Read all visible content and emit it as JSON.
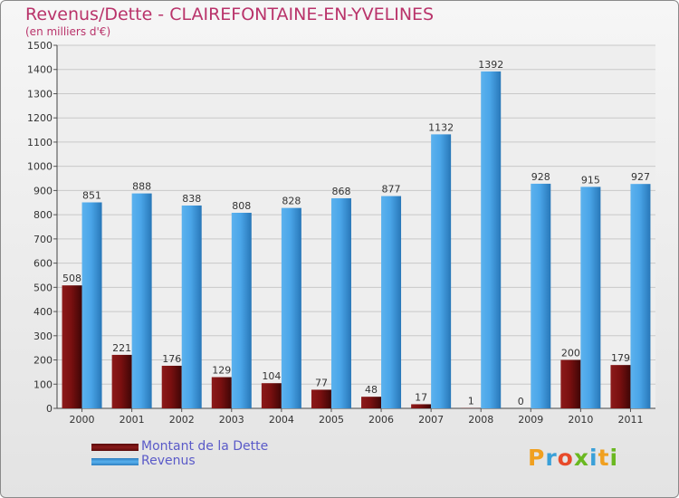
{
  "header": {
    "title": "Revenus/Dette - CLAIREFONTAINE-EN-YVELINES",
    "subtitle": "(en milliers d'€)"
  },
  "chart_data": {
    "type": "bar",
    "title": "Revenus/Dette - CLAIREFONTAINE-EN-YVELINES",
    "ylabel": "(en milliers d'€)",
    "xlabel": "",
    "ylim": [
      0,
      1500
    ],
    "yticks": [
      0,
      100,
      200,
      300,
      400,
      500,
      600,
      700,
      800,
      900,
      1000,
      1100,
      1200,
      1300,
      1400,
      1500
    ],
    "categories": [
      "2000",
      "2001",
      "2002",
      "2003",
      "2004",
      "2005",
      "2006",
      "2007",
      "2008",
      "2009",
      "2010",
      "2011"
    ],
    "series": [
      {
        "name": "Montant de la Dette",
        "color": "#7a1010",
        "values": [
          508,
          221,
          176,
          129,
          104,
          77,
          48,
          17,
          1,
          0,
          200,
          179
        ]
      },
      {
        "name": "Revenus",
        "color": "#3d9be2",
        "values": [
          851,
          888,
          838,
          808,
          828,
          868,
          877,
          1132,
          1392,
          928,
          915,
          927
        ]
      }
    ],
    "grid": true,
    "legend_position": "bottom-left"
  },
  "legend": {
    "items": [
      {
        "label": "Montant de la Dette",
        "color": "#7a1010"
      },
      {
        "label": "Revenus",
        "color": "#3d9be2"
      }
    ]
  },
  "brand": {
    "letters": [
      "P",
      "r",
      "o",
      "x",
      "i",
      "t",
      "i"
    ],
    "colors": [
      "#f0a020",
      "#3aa0d8",
      "#e84a2a",
      "#6ab820",
      "#3aa0d8",
      "#f0a020",
      "#6ab820"
    ]
  }
}
